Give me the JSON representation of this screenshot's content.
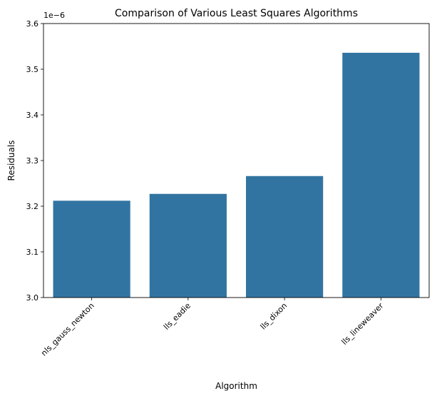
{
  "chart_data": {
    "type": "bar",
    "title": "Comparison of Various Least Squares Algorithms",
    "xlabel": "Algorithm",
    "ylabel": "Residuals",
    "offset_label": "1e−6",
    "categories": [
      "nls_gauss_newton",
      "lls_eadie",
      "lls_dixon",
      "lls_lineweaver"
    ],
    "values": [
      3.212,
      3.227,
      3.266,
      3.536
    ],
    "ylim": [
      3.0,
      3.6
    ],
    "yticks": [
      "3.0",
      "3.1",
      "3.2",
      "3.3",
      "3.4",
      "3.5",
      "3.6"
    ],
    "bar_color": "#3274a1",
    "grid": false,
    "legend": "none"
  }
}
